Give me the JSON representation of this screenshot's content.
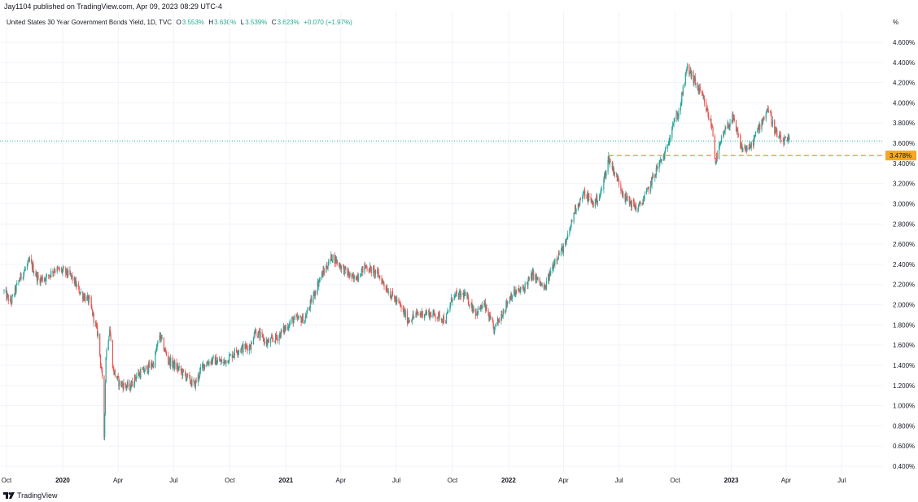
{
  "header": {
    "published": "Jay1104 published on TradingView.com, Apr 09, 2023 08:29 UTC-4"
  },
  "legend": {
    "symbol": "United States 30 Year Government Bonds Yield, 1D, TVC",
    "open_label": "O",
    "open": "3.553%",
    "high_label": "H",
    "high": "3.630%",
    "low_label": "L",
    "low": "3.539%",
    "close_label": "C",
    "close": "3.623%",
    "change": "+0.070 (+1.97%)"
  },
  "footer": {
    "brand": "TradingView"
  },
  "colors": {
    "up": "#26a69a",
    "down": "#ef5350",
    "support_line": "#f5a623",
    "last_price_line": "#22ab94",
    "grid": "#f0f3fa"
  },
  "chart_data": {
    "type": "candlestick",
    "unit_label": "%",
    "ylim": [
      0.3,
      4.72
    ],
    "y_ticks": [
      "4.600%",
      "4.400%",
      "4.200%",
      "4.000%",
      "3.800%",
      "3.600%",
      "3.400%",
      "3.200%",
      "3.000%",
      "2.800%",
      "2.600%",
      "2.400%",
      "2.200%",
      "2.000%",
      "1.800%",
      "1.600%",
      "1.400%",
      "1.200%",
      "1.000%",
      "0.800%",
      "0.600%",
      "0.400%"
    ],
    "x_ticks": [
      {
        "label": "Oct",
        "bold": false,
        "date": "2019-10-01"
      },
      {
        "label": "2020",
        "bold": true,
        "date": "2020-01-01"
      },
      {
        "label": "Apr",
        "bold": false,
        "date": "2020-04-01"
      },
      {
        "label": "Jul",
        "bold": false,
        "date": "2020-07-01"
      },
      {
        "label": "Oct",
        "bold": false,
        "date": "2020-10-01"
      },
      {
        "label": "2021",
        "bold": true,
        "date": "2021-01-01"
      },
      {
        "label": "Apr",
        "bold": false,
        "date": "2021-04-01"
      },
      {
        "label": "Jul",
        "bold": false,
        "date": "2021-07-01"
      },
      {
        "label": "Oct",
        "bold": false,
        "date": "2021-10-01"
      },
      {
        "label": "2022",
        "bold": true,
        "date": "2022-01-01"
      },
      {
        "label": "Apr",
        "bold": false,
        "date": "2022-04-01"
      },
      {
        "label": "Jul",
        "bold": false,
        "date": "2022-07-01"
      },
      {
        "label": "Oct",
        "bold": false,
        "date": "2022-10-01"
      },
      {
        "label": "2023",
        "bold": true,
        "date": "2023-01-01"
      },
      {
        "label": "Apr",
        "bold": false,
        "date": "2023-04-01"
      },
      {
        "label": "Jul",
        "bold": false,
        "date": "2023-07-01"
      }
    ],
    "support_level": {
      "value": 3.478,
      "label": "3.478%",
      "from": "2022-06-14"
    },
    "last_price": 3.623,
    "close_path": [
      [
        "2019-09-27",
        2.13
      ],
      [
        "2019-10-08",
        2.02
      ],
      [
        "2019-10-22",
        2.25
      ],
      [
        "2019-11-08",
        2.43
      ],
      [
        "2019-11-22",
        2.25
      ],
      [
        "2019-12-06",
        2.27
      ],
      [
        "2019-12-18",
        2.35
      ],
      [
        "2020-01-03",
        2.33
      ],
      [
        "2020-01-15",
        2.28
      ],
      [
        "2020-01-30",
        2.12
      ],
      [
        "2020-02-14",
        2.03
      ],
      [
        "2020-02-28",
        1.7
      ],
      [
        "2020-03-06",
        1.25
      ],
      [
        "2020-03-09",
        0.7
      ],
      [
        "2020-03-12",
        1.5
      ],
      [
        "2020-03-18",
        1.77
      ],
      [
        "2020-03-24",
        1.35
      ],
      [
        "2020-04-03",
        1.22
      ],
      [
        "2020-04-20",
        1.18
      ],
      [
        "2020-05-01",
        1.3
      ],
      [
        "2020-05-15",
        1.35
      ],
      [
        "2020-05-29",
        1.42
      ],
      [
        "2020-06-08",
        1.7
      ],
      [
        "2020-06-22",
        1.45
      ],
      [
        "2020-07-06",
        1.38
      ],
      [
        "2020-07-20",
        1.3
      ],
      [
        "2020-08-04",
        1.2
      ],
      [
        "2020-08-18",
        1.4
      ],
      [
        "2020-09-01",
        1.45
      ],
      [
        "2020-09-21",
        1.43
      ],
      [
        "2020-10-13",
        1.55
      ],
      [
        "2020-11-06",
        1.6
      ],
      [
        "2020-11-10",
        1.75
      ],
      [
        "2020-12-01",
        1.62
      ],
      [
        "2020-12-18",
        1.68
      ],
      [
        "2021-01-12",
        1.85
      ],
      [
        "2021-02-01",
        1.86
      ],
      [
        "2021-02-25",
        2.25
      ],
      [
        "2021-03-18",
        2.48
      ],
      [
        "2021-04-01",
        2.38
      ],
      [
        "2021-04-22",
        2.25
      ],
      [
        "2021-05-12",
        2.38
      ],
      [
        "2021-06-01",
        2.3
      ],
      [
        "2021-06-22",
        2.1
      ],
      [
        "2021-07-06",
        2.0
      ],
      [
        "2021-07-20",
        1.85
      ],
      [
        "2021-08-03",
        1.9
      ],
      [
        "2021-08-17",
        1.92
      ],
      [
        "2021-09-03",
        1.9
      ],
      [
        "2021-09-20",
        1.85
      ],
      [
        "2021-10-01",
        2.08
      ],
      [
        "2021-10-20",
        2.1
      ],
      [
        "2021-11-09",
        1.92
      ],
      [
        "2021-11-22",
        2.0
      ],
      [
        "2021-12-08",
        1.75
      ],
      [
        "2021-12-20",
        1.9
      ],
      [
        "2022-01-05",
        2.1
      ],
      [
        "2022-01-24",
        2.15
      ],
      [
        "2022-02-10",
        2.3
      ],
      [
        "2022-03-01",
        2.15
      ],
      [
        "2022-03-18",
        2.45
      ],
      [
        "2022-04-05",
        2.6
      ],
      [
        "2022-04-20",
        2.95
      ],
      [
        "2022-05-05",
        3.1
      ],
      [
        "2022-05-20",
        3.0
      ],
      [
        "2022-06-01",
        3.1
      ],
      [
        "2022-06-14",
        3.45
      ],
      [
        "2022-06-28",
        3.25
      ],
      [
        "2022-07-12",
        3.05
      ],
      [
        "2022-08-01",
        2.95
      ],
      [
        "2022-08-15",
        3.1
      ],
      [
        "2022-09-01",
        3.35
      ],
      [
        "2022-09-15",
        3.5
      ],
      [
        "2022-09-27",
        3.8
      ],
      [
        "2022-10-07",
        3.9
      ],
      [
        "2022-10-21",
        4.35
      ],
      [
        "2022-11-03",
        4.2
      ],
      [
        "2022-11-15",
        4.05
      ],
      [
        "2022-12-01",
        3.75
      ],
      [
        "2022-12-06",
        3.42
      ],
      [
        "2022-12-20",
        3.7
      ],
      [
        "2023-01-03",
        3.85
      ],
      [
        "2023-01-18",
        3.55
      ],
      [
        "2023-02-01",
        3.55
      ],
      [
        "2023-02-15",
        3.75
      ],
      [
        "2023-03-02",
        3.95
      ],
      [
        "2023-03-15",
        3.7
      ],
      [
        "2023-03-24",
        3.62
      ],
      [
        "2023-04-06",
        3.62
      ]
    ]
  }
}
